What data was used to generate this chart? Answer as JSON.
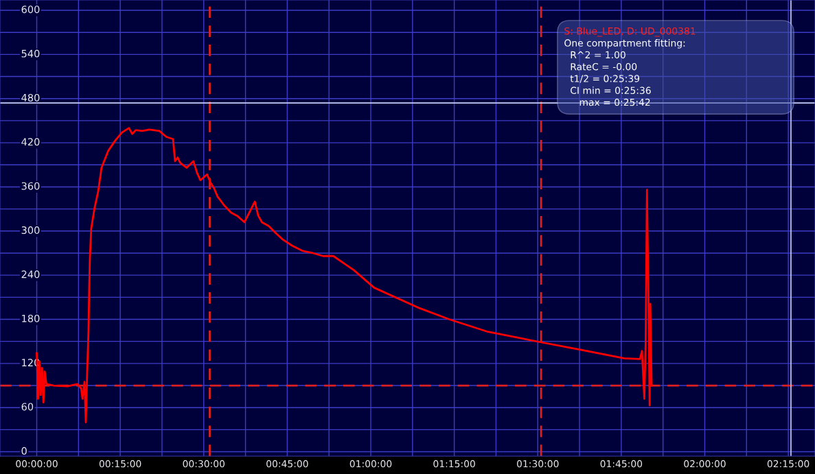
{
  "chart_data": {
    "type": "line",
    "x": [
      0,
      0.004,
      0.008,
      0.012,
      0.016,
      0.02,
      0.024,
      0.029,
      0.051,
      0.092,
      0.122,
      0.133,
      0.137,
      0.143,
      0.147,
      0.151,
      0.155,
      0.157,
      0.159,
      0.163,
      0.173,
      0.184,
      0.194,
      0.214,
      0.235,
      0.255,
      0.276,
      0.286,
      0.296,
      0.3,
      0.316,
      0.337,
      0.367,
      0.388,
      0.408,
      0.414,
      0.422,
      0.429,
      0.449,
      0.469,
      0.48,
      0.49,
      0.51,
      0.52,
      0.531,
      0.541,
      0.561,
      0.582,
      0.602,
      0.622,
      0.653,
      0.663,
      0.674,
      0.694,
      0.714,
      0.735,
      0.765,
      0.796,
      0.827,
      0.857,
      0.888,
      0.949,
      1.01,
      1.147,
      1.235,
      1.351,
      1.508,
      1.623,
      1.759,
      1.806,
      1.812,
      1.819,
      1.823,
      1.827,
      1.831,
      1.835,
      1.837,
      1.841
    ],
    "series": [
      {
        "color": "#ff0000",
        "values": [
          134,
          72,
          123,
          77,
          114,
          67,
          109,
          92,
          90,
          89,
          92,
          86,
          72,
          95,
          40,
          109,
          164,
          220,
          261,
          303,
          331,
          354,
          386,
          409,
          423,
          434,
          440,
          432,
          437,
          437,
          436,
          438,
          436,
          428,
          425,
          395,
          400,
          393,
          386,
          395,
          379,
          369,
          377,
          366,
          358,
          347,
          335,
          325,
          320,
          312,
          340,
          321,
          312,
          307,
          298,
          289,
          280,
          273,
          270,
          266,
          266,
          247,
          223,
          195,
          180,
          163,
          149,
          139,
          127,
          126,
          137,
          72,
          146,
          356,
          220,
          63,
          201,
          90
        ]
      }
    ],
    "xlim": [
      -0.11,
      2.33
    ],
    "ylim": [
      -6,
      614
    ],
    "xticks": [
      {
        "value": 0,
        "label": "00:00:00"
      },
      {
        "value": 0.125,
        "label": null
      },
      {
        "value": 0.25,
        "label": "00:15:00"
      },
      {
        "value": 0.375,
        "label": null
      },
      {
        "value": 0.5,
        "label": "00:30:00"
      },
      {
        "value": 0.625,
        "label": null
      },
      {
        "value": 0.75,
        "label": "00:45:00"
      },
      {
        "value": 0.875,
        "label": null
      },
      {
        "value": 1,
        "label": "01:00:00"
      },
      {
        "value": 1.125,
        "label": null
      },
      {
        "value": 1.25,
        "label": "01:15:00"
      },
      {
        "value": 1.375,
        "label": null
      },
      {
        "value": 1.5,
        "label": "01:30:00"
      },
      {
        "value": 1.625,
        "label": null
      },
      {
        "value": 1.75,
        "label": "01:45:00"
      },
      {
        "value": 1.875,
        "label": null
      },
      {
        "value": 2,
        "label": "02:00:00"
      },
      {
        "value": 2.125,
        "label": null
      },
      {
        "value": 2.25,
        "label": "02:15:00"
      }
    ],
    "yticks": [
      0,
      {
        "value": 30,
        "label": null
      },
      60,
      {
        "value": 90,
        "label": null
      },
      120,
      {
        "value": 150,
        "label": null
      },
      180,
      {
        "value": 210,
        "label": null
      },
      240,
      {
        "value": 270,
        "label": null
      },
      300,
      {
        "value": 330,
        "label": null
      },
      360,
      {
        "value": 390,
        "label": null
      },
      420,
      {
        "value": 450,
        "label": null
      },
      480,
      {
        "value": 510,
        "label": null
      },
      540,
      {
        "value": 570,
        "label": null
      },
      600
    ],
    "grid": true,
    "marker": "none",
    "line_style": "solid",
    "ref_lines": [
      {
        "axis": "y",
        "value": 90,
        "color": "#e02020",
        "line_style": "dashed"
      },
      {
        "axis": "x",
        "value": 0.518,
        "color": "#e02020",
        "line_style": "dashed"
      },
      {
        "axis": "x",
        "value": 1.51,
        "color": "#e02020",
        "line_style": "dashed"
      },
      {
        "axis": "y",
        "value": 474,
        "color": "#c8d0ff",
        "line_style": "solid"
      },
      {
        "axis": "x",
        "value": 2.258,
        "color": "#c8d0ff",
        "line_style": "solid"
      }
    ],
    "annotations": [
      "S: Blue_LED, D: UD_000381",
      "One compartment fitting:",
      "  R^2 = 1.00",
      "  RateC = -0.00",
      "  t1/2 = 0:25:39",
      "  CI min = 0:25:36",
      "     max = 0:25:42"
    ]
  }
}
